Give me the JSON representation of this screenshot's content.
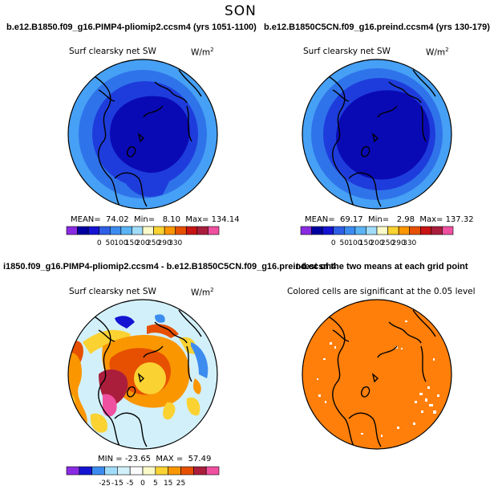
{
  "page": {
    "title": "SON"
  },
  "chart_data": [
    {
      "type": "heatmap",
      "title": "b.e12.B1850.f09_g16.PIMP4-pliomip2.ccsm4 (yrs 1051-1100)",
      "variable": "Surf clearsky net SW",
      "units": "W/m",
      "units_exp": "2",
      "stats": {
        "mean_label": "MEAN=",
        "mean": "74.02",
        "min_label": "Min=",
        "min": "8.10",
        "max_label": "Max=",
        "max": "134.14"
      },
      "colorbar": {
        "levels": [
          "0",
          "50",
          "100",
          "150",
          "200",
          "250",
          "290",
          "330"
        ],
        "colors": [
          "#8a2be2",
          "#0000a0",
          "#1414d2",
          "#2f5fe6",
          "#3c8cf0",
          "#5ab4f5",
          "#a0dcfa",
          "#fafac8",
          "#fad232",
          "#fa9600",
          "#e65000",
          "#c81414",
          "#aa1e3c",
          "#f050a0"
        ]
      }
    },
    {
      "type": "heatmap",
      "title": "b.e12.B1850C5CN.f09_g16.preind.ccsm4 (yrs 130-179)",
      "variable": "Surf clearsky net SW",
      "units": "W/m",
      "units_exp": "2",
      "stats": {
        "mean_label": "MEAN=",
        "mean": "69.17",
        "min_label": "Min=",
        "min": "2.98",
        "max_label": "Max=",
        "max": "137.32"
      },
      "colorbar": {
        "levels": [
          "0",
          "50",
          "100",
          "150",
          "200",
          "250",
          "290",
          "330"
        ],
        "colors": [
          "#8a2be2",
          "#0000a0",
          "#1414d2",
          "#2f5fe6",
          "#3c8cf0",
          "#5ab4f5",
          "#a0dcfa",
          "#fafac8",
          "#fad232",
          "#fa9600",
          "#e65000",
          "#c81414",
          "#aa1e3c",
          "#f050a0"
        ]
      }
    },
    {
      "type": "heatmap",
      "title": "i1850.f09_g16.PIMP4-pliomip2.ccsm4 - b.e12.B1850C5CN.f09_g16.preind.ccsm4",
      "variable": "Surf clearsky net SW",
      "units": "W/m",
      "units_exp": "2",
      "stats": {
        "min_label": "MIN =",
        "min": "-23.65",
        "max_label": "MAX =",
        "max": "57.49"
      },
      "colorbar": {
        "levels": [
          "-25",
          "-15",
          "-5",
          "0",
          "5",
          "15",
          "25"
        ],
        "colors": [
          "#8a2be2",
          "#1414d2",
          "#3c8cf0",
          "#a0dcfa",
          "#d2f0fa",
          "#fafafa",
          "#fafac8",
          "#fad232",
          "#fa9600",
          "#e65000",
          "#aa1e3c",
          "#f050a0"
        ]
      }
    },
    {
      "type": "heatmap",
      "title": "t-test of the two means at each grid point",
      "subtitle": "Colored cells are significant at the 0.05 level",
      "colors": {
        "significant": "#ff7f0a"
      }
    }
  ],
  "colors": {
    "deep_blue": "#0a0ab4",
    "mid_blue": "#1e3cdc",
    "blue": "#2f73ea",
    "light_blue": "#46a0f5",
    "orange": "#ff7f0a"
  }
}
